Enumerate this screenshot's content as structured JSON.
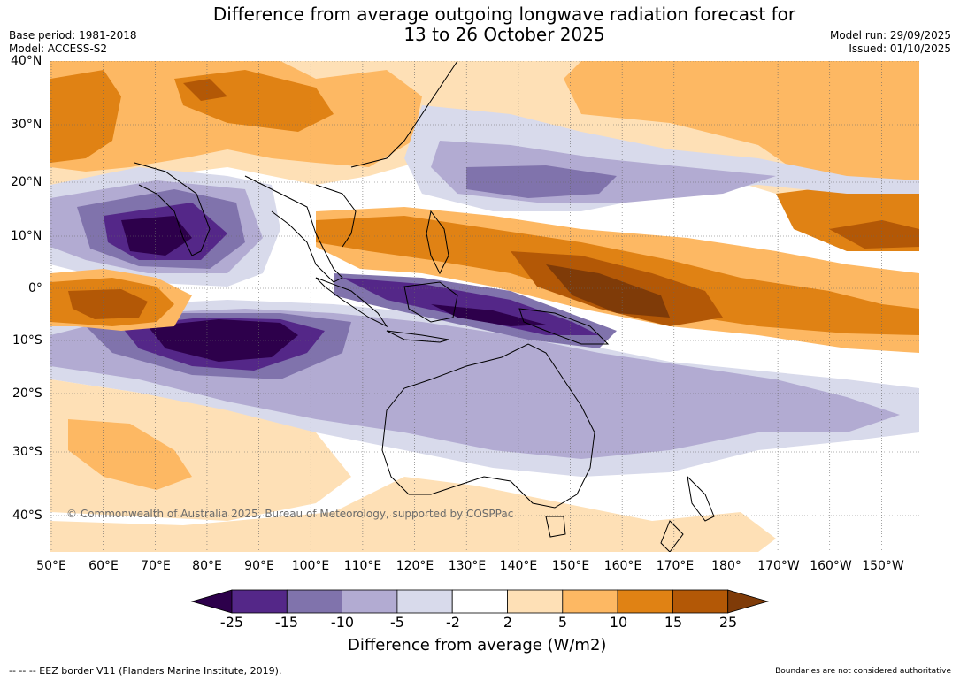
{
  "title_line1": "Difference from average outgoing longwave radiation forecast for",
  "title_line2": "13 to 26 October 2025",
  "base_period": "Base period: 1981-2018",
  "model": "Model: ACCESS-S2",
  "model_run": "Model run: 29/09/2025",
  "issued": "Issued: 01/10/2025",
  "lat_labels": [
    "40°N",
    "30°N",
    "20°N",
    "10°N",
    "0°",
    "10°S",
    "20°S",
    "30°S",
    "40°S"
  ],
  "lon_labels": [
    "50°E",
    "60°E",
    "70°E",
    "80°E",
    "90°E",
    "100°E",
    "110°E",
    "120°E",
    "130°E",
    "140°E",
    "150°E",
    "160°E",
    "170°E",
    "180°",
    "170°W",
    "160°W",
    "150°W"
  ],
  "colorbar": {
    "labels": [
      "-25",
      "-15",
      "-10",
      "-5",
      "-2",
      "2",
      "5",
      "10",
      "15",
      "25"
    ],
    "colors": [
      "#2d004b",
      "#542788",
      "#8073ac",
      "#b2abd2",
      "#d8daeb",
      "#ffffff",
      "#fee0b6",
      "#fdb863",
      "#e08214",
      "#b35806",
      "#7f3b08"
    ],
    "title": "Difference from average (W/m2)"
  },
  "copyright": "© Commonwealth of Australia 2025, Bureau of Meteorology, supported by COSPPac",
  "eez_note": "--  --  -- EEZ border V11 (Flanders Marine Institute, 2019).",
  "disclaimer": "Boundaries are not considered authoritative"
}
